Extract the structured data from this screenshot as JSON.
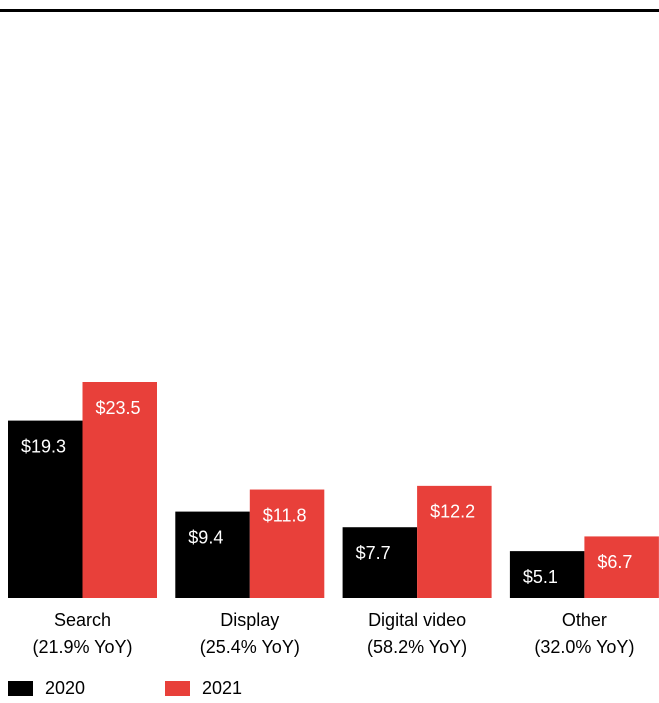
{
  "chart_data": {
    "type": "bar",
    "categories": [
      "Search",
      "Display",
      "Digital video",
      "Other"
    ],
    "category_notes": [
      "(21.9% YoY)",
      "(25.4% YoY)",
      "(58.2% YoY)",
      "(32.0% YoY)"
    ],
    "series": [
      {
        "name": "2020",
        "color": "#000000",
        "values": [
          19.3,
          9.4,
          7.7,
          5.1
        ],
        "value_labels": [
          "$19.3",
          "$9.4",
          "$7.7",
          "$5.1"
        ]
      },
      {
        "name": "2021",
        "color": "#e8403a",
        "values": [
          23.5,
          11.8,
          12.2,
          6.7
        ],
        "value_labels": [
          "$23.5",
          "$11.8",
          "$12.2",
          "$6.7"
        ]
      }
    ],
    "legend": "bottom-left"
  }
}
